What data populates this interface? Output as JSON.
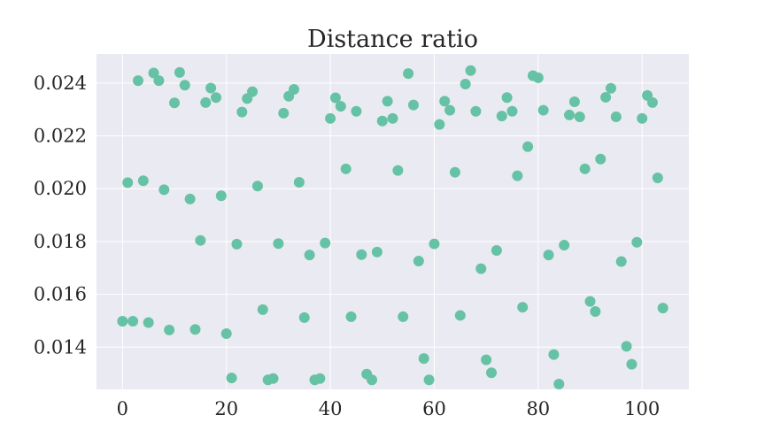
{
  "chart_data": {
    "type": "scatter",
    "title": "Distance ratio",
    "xlabel": "",
    "ylabel": "",
    "xlim": [
      -5,
      109
    ],
    "ylim": [
      0.0124,
      0.0251
    ],
    "xticks": [
      0,
      20,
      40,
      60,
      80,
      100
    ],
    "xtick_labels": [
      "0",
      "20",
      "40",
      "60",
      "80",
      "100"
    ],
    "yticks": [
      0.014,
      0.016,
      0.018,
      0.02,
      0.022,
      0.024
    ],
    "ytick_labels": [
      "0.014",
      "0.016",
      "0.018",
      "0.020",
      "0.022",
      "0.024"
    ],
    "grid": true,
    "background_color": "#eaeaf2",
    "point_color": "#66c2a5",
    "series": [
      {
        "x": [
          0,
          1,
          2,
          3,
          4,
          5,
          6,
          7,
          8,
          9,
          10,
          11,
          12,
          13,
          14,
          15,
          16,
          17,
          18,
          19,
          20,
          21,
          22,
          23,
          24,
          25,
          26,
          27,
          28,
          29,
          30,
          31,
          32,
          33,
          34,
          35,
          36,
          37,
          38,
          39,
          40,
          41,
          42,
          43,
          44,
          45,
          46,
          47,
          48,
          49,
          50,
          51,
          52,
          53,
          54,
          55,
          56,
          57,
          58,
          59,
          60,
          61,
          62,
          63,
          64,
          65,
          66,
          67,
          68,
          69,
          70,
          71,
          72,
          73,
          74,
          75,
          76,
          77,
          78,
          79,
          80,
          81,
          82,
          83,
          84,
          85,
          86,
          87,
          88,
          89,
          90,
          91,
          92,
          93,
          94,
          95,
          96,
          97,
          98,
          99,
          100,
          101,
          102,
          103,
          104
        ],
        "y": [
          0.01498,
          0.02023,
          0.01498,
          0.02409,
          0.0203,
          0.01493,
          0.02438,
          0.02409,
          0.01996,
          0.01465,
          0.02325,
          0.0244,
          0.02392,
          0.01961,
          0.01467,
          0.01804,
          0.02326,
          0.02381,
          0.02345,
          0.01973,
          0.01451,
          0.01283,
          0.0179,
          0.0229,
          0.02341,
          0.02367,
          0.0201,
          0.01542,
          0.01276,
          0.01281,
          0.01792,
          0.02286,
          0.0235,
          0.02376,
          0.02024,
          0.01512,
          0.01749,
          0.01276,
          0.01281,
          0.01794,
          0.02266,
          0.02344,
          0.02312,
          0.02075,
          0.01515,
          0.02293,
          0.0175,
          0.01298,
          0.01276,
          0.0176,
          0.02256,
          0.02331,
          0.02266,
          0.02069,
          0.01515,
          0.02436,
          0.02317,
          0.01726,
          0.01357,
          0.01276,
          0.01791,
          0.02243,
          0.02331,
          0.02297,
          0.02062,
          0.0152,
          0.02396,
          0.02447,
          0.02293,
          0.01697,
          0.01352,
          0.01303,
          0.01766,
          0.02275,
          0.02345,
          0.02293,
          0.02049,
          0.01551,
          0.02159,
          0.02428,
          0.0242,
          0.02297,
          0.01749,
          0.01372,
          0.0126,
          0.01786,
          0.02279,
          0.02329,
          0.02272,
          0.02075,
          0.01573,
          0.01535,
          0.02112,
          0.02346,
          0.0238,
          0.02272,
          0.01724,
          0.01403,
          0.01335,
          0.01797,
          0.02266,
          0.02353,
          0.02326,
          0.02041,
          0.01548
        ]
      }
    ]
  }
}
